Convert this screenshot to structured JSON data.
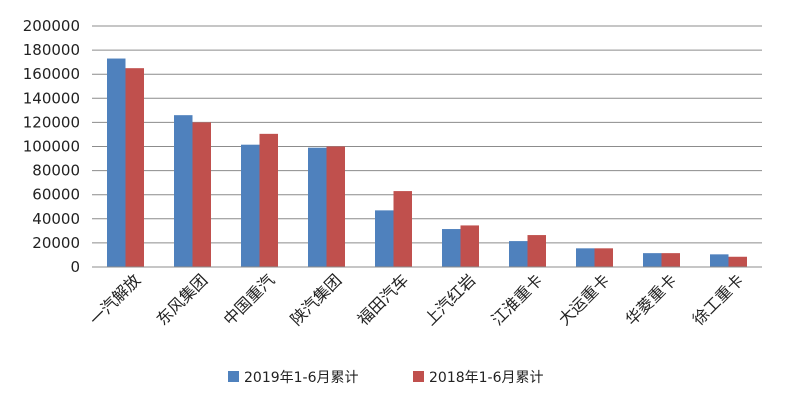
{
  "chart_data": {
    "type": "bar",
    "categories": [
      "一汽解放",
      "东风集团",
      "中国重汽",
      "陕汽集团",
      "福田汽车",
      "上汽红岩",
      "江淮重卡",
      "大运重卡",
      "华菱重卡",
      "徐工重卡"
    ],
    "series": [
      {
        "name": "2019年1-6月累计",
        "color": "#4F81BD",
        "values": [
          173000,
          126000,
          101500,
          99000,
          47000,
          31500,
          21500,
          15500,
          11500,
          10500
        ]
      },
      {
        "name": "2018年1-6月累计",
        "color": "#C0504D",
        "values": [
          165000,
          120000,
          110500,
          100000,
          63000,
          34500,
          26500,
          15500,
          11500,
          8500
        ]
      }
    ],
    "yticks": [
      "0",
      "20000",
      "40000",
      "60000",
      "80000",
      "100000",
      "120000",
      "140000",
      "160000",
      "180000",
      "200000"
    ],
    "ylim": [
      0,
      200000
    ],
    "grid": true,
    "legend_position": "bottom"
  }
}
